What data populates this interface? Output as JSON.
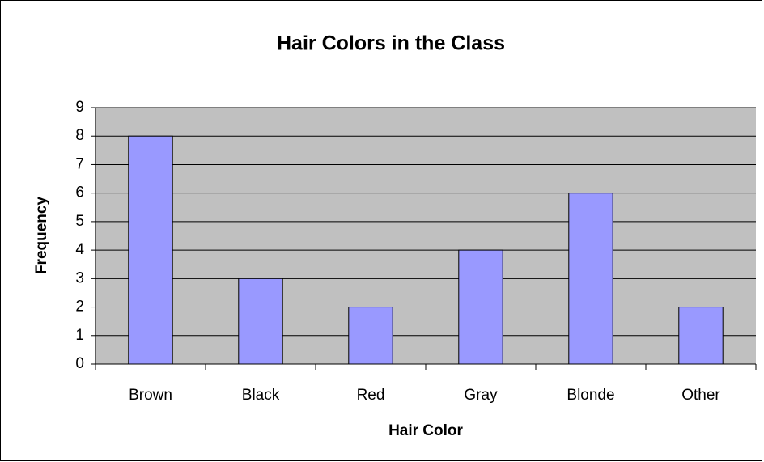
{
  "chart_data": {
    "type": "bar",
    "title": "Hair Colors in the Class",
    "x_label": "Hair Color",
    "y_label": "Frequency",
    "categories": [
      "Brown",
      "Black",
      "Red",
      "Gray",
      "Blonde",
      "Other"
    ],
    "values": [
      8,
      3,
      2,
      4,
      6,
      2
    ],
    "color": "#9999ff",
    "plot_background": "#c0c0c0",
    "ylim": [
      0,
      9
    ],
    "yticks": [
      0,
      1,
      2,
      3,
      4,
      5,
      6,
      7,
      8,
      9
    ],
    "grid": true
  }
}
